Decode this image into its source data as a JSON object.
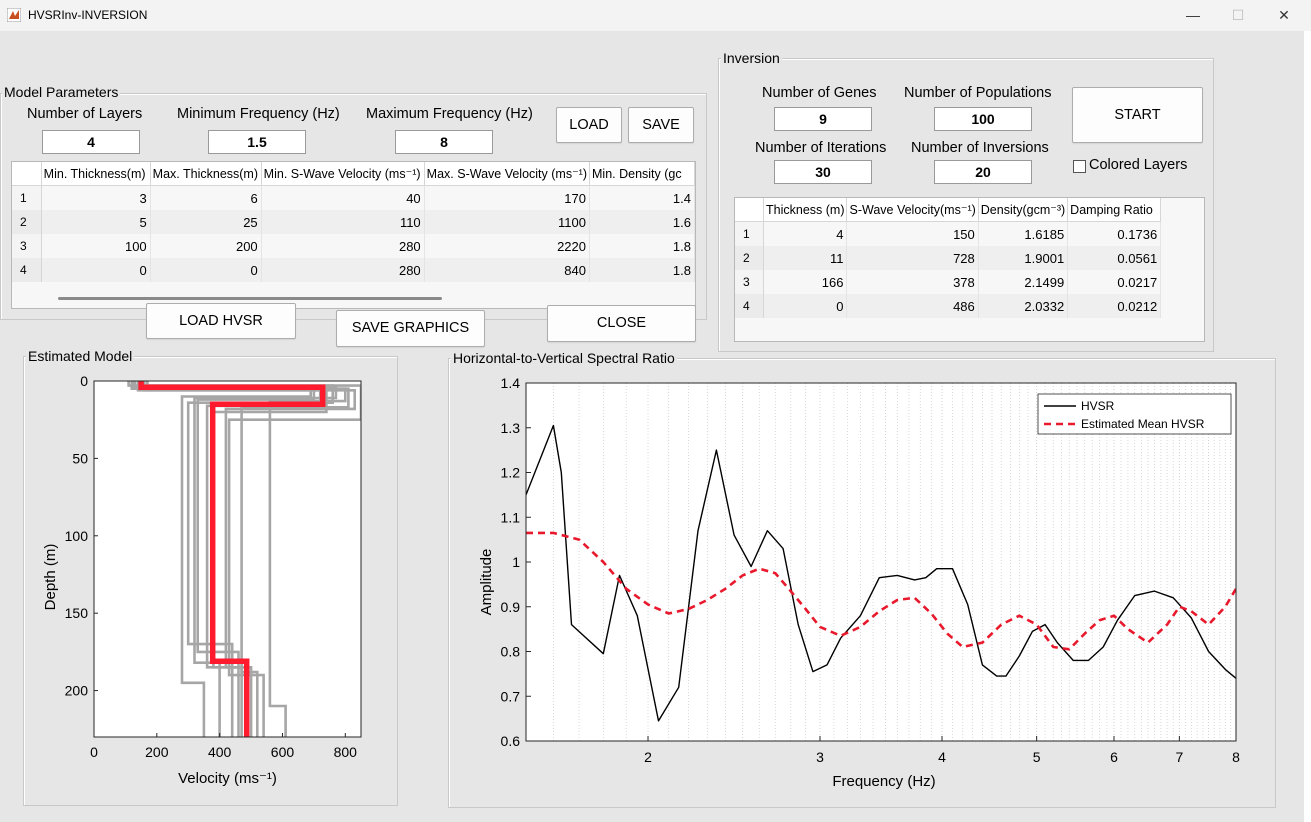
{
  "window": {
    "title": "HVSRInv-INVERSION",
    "minimize": "—",
    "maximize": "☐",
    "close": "✕"
  },
  "model_parameters": {
    "title": "Model Parameters",
    "num_layers_label": "Number of Layers",
    "num_layers": "4",
    "min_freq_label": "Minimum Frequency (Hz)",
    "min_freq": "1.5",
    "max_freq_label": "Maximum Frequency (Hz)",
    "max_freq": "8",
    "load": "LOAD",
    "save": "SAVE",
    "columns": [
      "Min. Thickness(m)",
      "Max. Thickness(m)",
      "Min. S-Wave Velocity (ms⁻¹)",
      "Max. S-Wave Velocity (ms⁻¹)",
      "Min. Density (gc"
    ],
    "rows": [
      {
        "n": "1",
        "c": [
          "3",
          "6",
          "40",
          "170",
          "1.4"
        ]
      },
      {
        "n": "2",
        "c": [
          "5",
          "25",
          "110",
          "1100",
          "1.6"
        ]
      },
      {
        "n": "3",
        "c": [
          "100",
          "200",
          "280",
          "2220",
          "1.8"
        ]
      },
      {
        "n": "4",
        "c": [
          "0",
          "0",
          "280",
          "840",
          "1.8"
        ]
      }
    ]
  },
  "buttons": {
    "load_hvsr": "LOAD HVSR",
    "save_graphics": "SAVE GRAPHICS",
    "close": "CLOSE"
  },
  "inversion": {
    "title": "Inversion",
    "genes_label": "Number of Genes",
    "genes": "9",
    "pop_label": "Number of Populations",
    "pop": "100",
    "iter_label": "Number of Iterations",
    "iter": "30",
    "inv_label": "Number of Inversions",
    "inv": "20",
    "start": "START",
    "colored_layers": "Colored Layers",
    "columns": [
      "Thickness (m)",
      "S-Wave Velocity(ms⁻¹)",
      "Density(gcm⁻³)",
      "Damping Ratio"
    ],
    "rows": [
      {
        "n": "1",
        "c": [
          "4",
          "150",
          "1.6185",
          "0.1736"
        ]
      },
      {
        "n": "2",
        "c": [
          "11",
          "728",
          "1.9001",
          "0.0561"
        ]
      },
      {
        "n": "3",
        "c": [
          "166",
          "378",
          "2.1499",
          "0.0217"
        ]
      },
      {
        "n": "4",
        "c": [
          "0",
          "486",
          "2.0332",
          "0.0212"
        ]
      }
    ]
  },
  "chart_data": [
    {
      "type": "line",
      "title": "Estimated Model",
      "xlabel": "Velocity (ms⁻¹)",
      "ylabel": "Depth (m)",
      "xlim": [
        0,
        850
      ],
      "ylim": [
        230,
        0
      ],
      "xticks": [
        "0",
        "200",
        "400",
        "600",
        "800"
      ],
      "yticks": [
        "0",
        "50",
        "100",
        "150",
        "200"
      ],
      "colors": {
        "best": "#ff1a2e",
        "candidates": "#a6a6a6"
      },
      "best_model": {
        "x": [
          150,
          150,
          728,
          728,
          378,
          378,
          486,
          486
        ],
        "y": [
          0,
          4,
          4,
          15,
          15,
          181,
          181,
          230
        ]
      },
      "candidates": [
        {
          "x": [
            120,
            120,
            700,
            700,
            330,
            330,
            460,
            460
          ],
          "y": [
            0,
            5,
            5,
            12,
            12,
            175,
            175,
            230
          ]
        },
        {
          "x": [
            140,
            140,
            760,
            760,
            300,
            300,
            440,
            440
          ],
          "y": [
            0,
            3,
            3,
            14,
            14,
            170,
            170,
            230
          ]
        },
        {
          "x": [
            160,
            160,
            830,
            830,
            420,
            420,
            500,
            500
          ],
          "y": [
            0,
            6,
            6,
            18,
            18,
            185,
            185,
            230
          ]
        },
        {
          "x": [
            130,
            130,
            690,
            690,
            280,
            280,
            350,
            350
          ],
          "y": [
            0,
            4,
            4,
            10,
            10,
            195,
            195,
            230
          ]
        },
        {
          "x": [
            150,
            150,
            800,
            800,
            560,
            560,
            610,
            610
          ],
          "y": [
            0,
            5,
            5,
            13,
            13,
            210,
            210,
            230
          ]
        },
        {
          "x": [
            170,
            170,
            740,
            740,
            380,
            380,
            470,
            470
          ],
          "y": [
            0,
            4,
            4,
            20,
            20,
            185,
            185,
            230
          ]
        },
        {
          "x": [
            110,
            110,
            850,
            850,
            430,
            430,
            540,
            540
          ],
          "y": [
            0,
            3,
            3,
            25,
            25,
            190,
            190,
            230
          ]
        },
        {
          "x": [
            140,
            140,
            720,
            720,
            360,
            360,
            490,
            490
          ],
          "y": [
            0,
            6,
            6,
            16,
            16,
            185,
            185,
            230
          ]
        },
        {
          "x": [
            160,
            160,
            770,
            770,
            320,
            320,
            400,
            400
          ],
          "y": [
            0,
            4,
            4,
            11,
            11,
            182,
            182,
            230
          ]
        },
        {
          "x": [
            125,
            125,
            810,
            810,
            470,
            470,
            520,
            520
          ],
          "y": [
            0,
            5,
            5,
            17,
            17,
            188,
            188,
            230
          ]
        }
      ]
    },
    {
      "type": "line",
      "title": "Horizontal-to-Vertical Spectral Ratio",
      "xlabel": "Frequency (Hz)",
      "ylabel": "Amplitude",
      "xscale": "log",
      "xlim": [
        1.5,
        8
      ],
      "ylim": [
        0.6,
        1.4
      ],
      "xticks": [
        "2",
        "3",
        "4",
        "5",
        "6",
        "7",
        "8"
      ],
      "yticks": [
        "0.6",
        "0.7",
        "0.8",
        "0.9",
        "1",
        "1.1",
        "1.2",
        "1.3",
        "1.4"
      ],
      "grid": "x-minor-dotted",
      "legend": "top-right",
      "series": [
        {
          "name": "HVSR",
          "color": "#000000",
          "style": "solid",
          "x": [
            1.5,
            1.6,
            1.63,
            1.67,
            1.8,
            1.87,
            1.95,
            2.05,
            2.15,
            2.25,
            2.35,
            2.45,
            2.55,
            2.65,
            2.75,
            2.85,
            2.95,
            3.05,
            3.15,
            3.3,
            3.45,
            3.6,
            3.75,
            3.85,
            3.95,
            4.1,
            4.25,
            4.4,
            4.55,
            4.65,
            4.8,
            4.95,
            5.1,
            5.25,
            5.45,
            5.65,
            5.85,
            6.05,
            6.3,
            6.6,
            6.9,
            7.2,
            7.5,
            7.8,
            8.0
          ],
          "y": [
            1.15,
            1.305,
            1.2,
            0.86,
            0.795,
            0.97,
            0.88,
            0.645,
            0.72,
            1.07,
            1.25,
            1.06,
            0.99,
            1.07,
            1.03,
            0.86,
            0.755,
            0.77,
            0.83,
            0.88,
            0.965,
            0.97,
            0.96,
            0.965,
            0.985,
            0.985,
            0.905,
            0.77,
            0.745,
            0.745,
            0.79,
            0.845,
            0.86,
            0.82,
            0.78,
            0.78,
            0.81,
            0.87,
            0.925,
            0.935,
            0.92,
            0.875,
            0.8,
            0.76,
            0.74
          ]
        },
        {
          "name": "Estimated Mean HVSR",
          "color": "#e8192c",
          "style": "dashed",
          "x": [
            1.5,
            1.6,
            1.7,
            1.8,
            1.9,
            2.0,
            2.1,
            2.2,
            2.3,
            2.4,
            2.5,
            2.6,
            2.7,
            2.8,
            2.9,
            3.0,
            3.15,
            3.3,
            3.45,
            3.6,
            3.75,
            3.9,
            4.05,
            4.2,
            4.4,
            4.6,
            4.8,
            5.0,
            5.2,
            5.4,
            5.6,
            5.8,
            6.0,
            6.2,
            6.5,
            6.8,
            7.0,
            7.2,
            7.5,
            7.8,
            8.0
          ],
          "y": [
            1.065,
            1.065,
            1.05,
            1.0,
            0.94,
            0.905,
            0.885,
            0.895,
            0.915,
            0.94,
            0.97,
            0.985,
            0.975,
            0.935,
            0.895,
            0.855,
            0.835,
            0.855,
            0.89,
            0.915,
            0.92,
            0.885,
            0.84,
            0.81,
            0.82,
            0.86,
            0.88,
            0.86,
            0.81,
            0.805,
            0.84,
            0.87,
            0.88,
            0.85,
            0.82,
            0.86,
            0.9,
            0.89,
            0.86,
            0.9,
            0.94
          ]
        }
      ]
    }
  ]
}
